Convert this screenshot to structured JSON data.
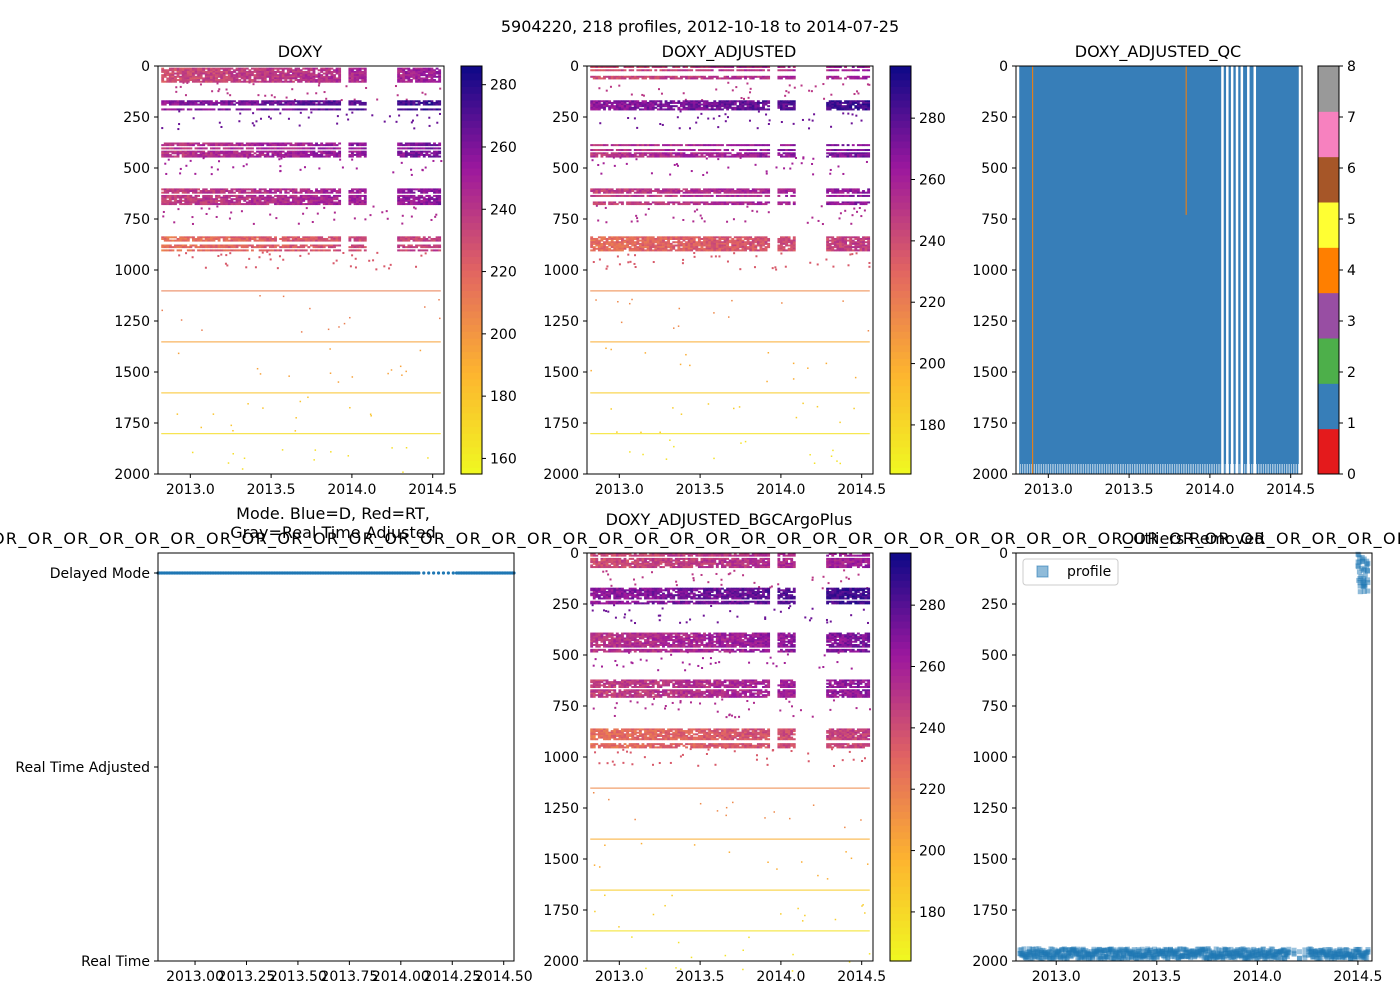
{
  "suptitle": "5904220, 218 profiles, 2012-10-18 to 2014-07-25",
  "chart_data": [
    {
      "id": "doxy",
      "type": "heatmap",
      "title": "DOXY",
      "xlim": [
        2012.8,
        2014.57
      ],
      "ylim": [
        2000,
        0
      ],
      "xticks": [
        2013.0,
        2013.5,
        2014.0,
        2014.5
      ],
      "xtick_labels": [
        "2013.0",
        "2013.5",
        "2014.0",
        "2014.5"
      ],
      "yticks": [
        0,
        250,
        500,
        750,
        1000,
        1250,
        1500,
        1750,
        2000
      ],
      "ytick_labels": [
        "0",
        "250",
        "500",
        "750",
        "1000",
        "1250",
        "1500",
        "1750",
        "2000"
      ],
      "colormap": "plasma_r",
      "colorbar_range": [
        155,
        286
      ],
      "colorbar_ticks": [
        160,
        180,
        200,
        220,
        240,
        260,
        280
      ],
      "colorbar_tick_labels": [
        "160",
        "180",
        "200",
        "220",
        "240",
        "260",
        "280"
      ],
      "bands": [
        {
          "y0": 0,
          "y1": 75,
          "value": 230
        },
        {
          "y0": 160,
          "y1": 215,
          "value": 255
        },
        {
          "y0": 375,
          "y1": 440,
          "value": 240
        },
        {
          "y0": 600,
          "y1": 680,
          "value": 235
        },
        {
          "y0": 835,
          "y1": 905,
          "value": 215
        }
      ],
      "lines": [
        {
          "y": 1100,
          "value": 210
        },
        {
          "y": 1350,
          "value": 195
        },
        {
          "y": 1600,
          "value": 180
        },
        {
          "y": 1800,
          "value": 168
        }
      ]
    },
    {
      "id": "doxy_adjusted",
      "type": "heatmap",
      "title": "DOXY_ADJUSTED",
      "xlim": [
        2012.8,
        2014.57
      ],
      "ylim": [
        2000,
        0
      ],
      "xticks": [
        2013.0,
        2013.5,
        2014.0,
        2014.5
      ],
      "xtick_labels": [
        "2013.0",
        "2013.5",
        "2014.0",
        "2014.5"
      ],
      "yticks": [
        0,
        250,
        500,
        750,
        1000,
        1250,
        1500,
        1750,
        2000
      ],
      "ytick_labels": [
        "0",
        "250",
        "500",
        "750",
        "1000",
        "1250",
        "1500",
        "1750",
        "2000"
      ],
      "colormap": "plasma_r",
      "colorbar_range": [
        164,
        297
      ],
      "colorbar_ticks": [
        180,
        200,
        220,
        240,
        260,
        280
      ],
      "colorbar_tick_labels": [
        "180",
        "200",
        "220",
        "240",
        "260",
        "280"
      ],
      "bands": [
        {
          "y0": 0,
          "y1": 75,
          "value": 240
        },
        {
          "y0": 160,
          "y1": 215,
          "value": 265
        },
        {
          "y0": 375,
          "y1": 440,
          "value": 250
        },
        {
          "y0": 600,
          "y1": 680,
          "value": 245
        },
        {
          "y0": 835,
          "y1": 905,
          "value": 225
        }
      ],
      "lines": [
        {
          "y": 1100,
          "value": 215
        },
        {
          "y": 1350,
          "value": 200
        },
        {
          "y": 1600,
          "value": 185
        },
        {
          "y": 1800,
          "value": 175
        }
      ]
    },
    {
      "id": "doxy_adjusted_qc",
      "type": "heatmap",
      "title": "DOXY_ADJUSTED_QC",
      "xlim": [
        2012.8,
        2014.57
      ],
      "ylim": [
        2000,
        0
      ],
      "xticks": [
        2013.0,
        2013.5,
        2014.0,
        2014.5
      ],
      "xtick_labels": [
        "2013.0",
        "2013.5",
        "2014.0",
        "2014.5"
      ],
      "yticks": [
        0,
        250,
        500,
        750,
        1000,
        1250,
        1500,
        1750,
        2000
      ],
      "ytick_labels": [
        "0",
        "250",
        "500",
        "750",
        "1000",
        "1250",
        "1500",
        "1750",
        "2000"
      ],
      "colorbar_ticks": [
        0,
        1,
        2,
        3,
        4,
        5,
        6,
        7,
        8
      ],
      "colorbar_tick_labels": [
        "0",
        "1",
        "2",
        "3",
        "4",
        "5",
        "6",
        "7",
        "8"
      ],
      "qc_colors": [
        "#e41a1c",
        "#377eb8",
        "#4daf4a",
        "#984ea3",
        "#ff7f00",
        "#ffff33",
        "#a65628",
        "#f781bf",
        "#999999"
      ],
      "dominant_flag": 1,
      "data_x": [
        2012.82,
        2014.55
      ],
      "gaps": [
        2014.07,
        2014.1,
        2014.13,
        2014.16,
        2014.19,
        2014.23,
        2014.27
      ],
      "flag4_lines": [
        {
          "x": 2012.9,
          "y1": 2000
        },
        {
          "x": 2013.85,
          "y1": 730
        }
      ]
    },
    {
      "id": "mode",
      "type": "scatter",
      "title": "Mode. Blue=D, Red=RT,\nGray=Real Time Adjusted",
      "xlim": [
        2012.82,
        2014.55
      ],
      "xticks": [
        2013.0,
        2013.25,
        2013.5,
        2013.75,
        2014.0,
        2014.25,
        2014.5
      ],
      "xtick_labels": [
        "2013.00",
        "2013.25",
        "2013.50",
        "2013.75",
        "2014.00",
        "2014.25",
        "2014.50"
      ],
      "yticks": [
        2,
        1,
        0
      ],
      "ytick_labels": [
        "Delayed Mode",
        "Real Time Adjusted",
        "Real Time"
      ],
      "series": [
        {
          "name": "D",
          "color": "#1f77b4",
          "y": 2,
          "x_range": [
            2012.82,
            2014.55
          ],
          "sparse_range": [
            2014.08,
            2014.27
          ]
        }
      ]
    },
    {
      "id": "bgcargoplus",
      "type": "heatmap",
      "title": "DOXY_ADJUSTED_BGCArgoPlus",
      "xlim": [
        2012.8,
        2014.57
      ],
      "ylim": [
        2000,
        0
      ],
      "xticks": [
        2013.0,
        2013.5,
        2014.0,
        2014.5
      ],
      "xtick_labels": [
        "2013.0",
        "2013.5",
        "2014.0",
        "2014.5"
      ],
      "yticks": [
        0,
        250,
        500,
        750,
        1000,
        1250,
        1500,
        1750,
        2000
      ],
      "ytick_labels": [
        "0",
        "250",
        "500",
        "750",
        "1000",
        "1250",
        "1500",
        "1750",
        "2000"
      ],
      "colormap": "plasma_r",
      "colorbar_range": [
        164,
        297
      ],
      "colorbar_ticks": [
        180,
        200,
        220,
        240,
        260,
        280
      ],
      "colorbar_tick_labels": [
        "180",
        "200",
        "220",
        "240",
        "260",
        "280"
      ],
      "bands": [
        {
          "y0": 0,
          "y1": 80,
          "value": 240
        },
        {
          "y0": 170,
          "y1": 250,
          "value": 265
        },
        {
          "y0": 390,
          "y1": 480,
          "value": 250
        },
        {
          "y0": 620,
          "y1": 710,
          "value": 245
        },
        {
          "y0": 860,
          "y1": 950,
          "value": 225
        }
      ],
      "lines": [
        {
          "y": 1150,
          "value": 215
        },
        {
          "y": 1400,
          "value": 200
        },
        {
          "y": 1650,
          "value": 185
        },
        {
          "y": 1850,
          "value": 175
        }
      ]
    },
    {
      "id": "outliers",
      "type": "scatter",
      "title": "Outliers Removed",
      "xlim": [
        2012.8,
        2014.57
      ],
      "ylim": [
        2000,
        0
      ],
      "xticks": [
        2013.0,
        2013.5,
        2014.0,
        2014.5
      ],
      "xtick_labels": [
        "2013.0",
        "2013.5",
        "2014.0",
        "2014.5"
      ],
      "yticks": [
        0,
        250,
        500,
        750,
        1000,
        1250,
        1500,
        1750,
        2000
      ],
      "ytick_labels": [
        "0",
        "250",
        "500",
        "750",
        "1000",
        "1250",
        "1500",
        "1750",
        "2000"
      ],
      "legend": {
        "label": "profile",
        "position": "upper-left",
        "color": "#1f77b4"
      },
      "series": [
        {
          "name": "profile-bottom",
          "x_range": [
            2012.82,
            2014.55
          ],
          "y_range": [
            1940,
            1990
          ],
          "gap": [
            2014.15,
            2014.25
          ]
        },
        {
          "name": "profile-top",
          "x_range": [
            2014.5,
            2014.55
          ],
          "y_range": [
            0,
            190
          ]
        }
      ]
    }
  ],
  "overlay_text": "OR_OR_OR_OR_OR_OR_OR_OR_OR_OR_OR_OR_OR_OR_OR_OR_OR_OR_OR_OR_OR_OR_OR_OR_OR_OR_OR_OR_OR_OR_OR_OR_OR_OR_OR_OR_OR_OR_OR_OR"
}
